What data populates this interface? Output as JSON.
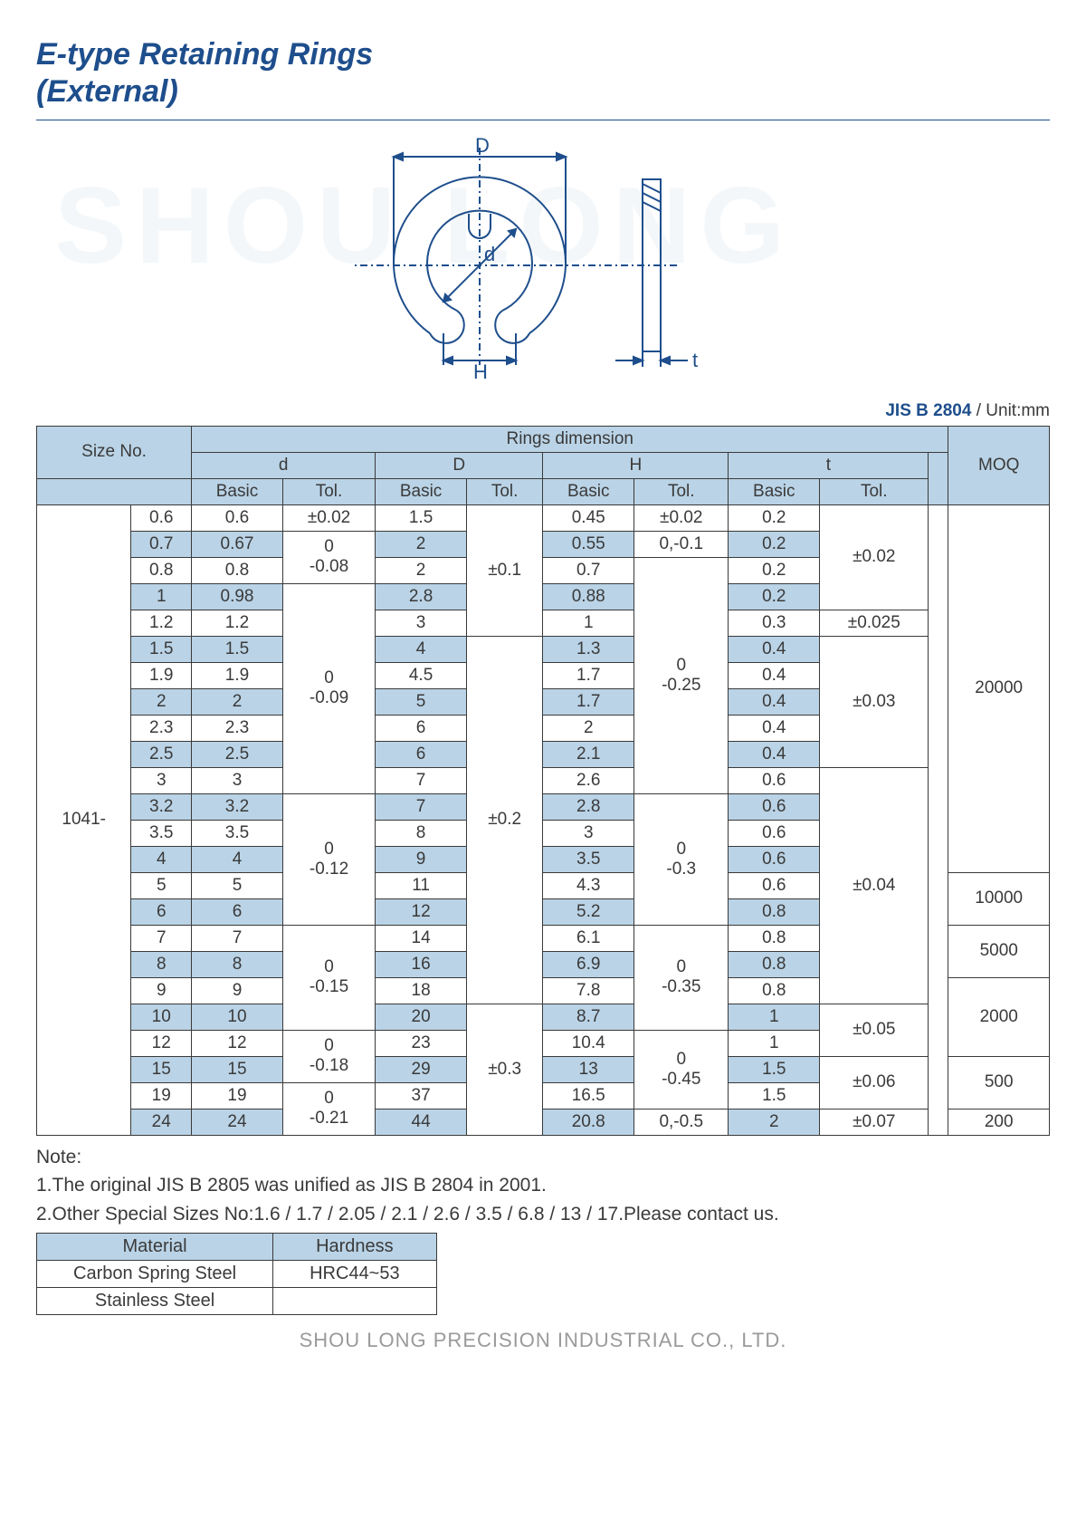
{
  "title_line1": "E-type Retaining Rings",
  "title_line2": "(External)",
  "watermark": "SHOU LONG",
  "standard": "JIS B 2804",
  "unit": "/ Unit:mm",
  "diagram": {
    "labels": {
      "D": "D",
      "d": "d",
      "H": "H",
      "t": "t"
    },
    "stroke": "#1e4e8c",
    "fill": "#ffffff"
  },
  "headers": {
    "size_no": "Size No.",
    "rings_dim": "Rings dimension",
    "moq": "MOQ",
    "d": "d",
    "D": "D",
    "H": "H",
    "t": "t",
    "basic": "Basic",
    "tol": "Tol."
  },
  "prefix": "1041-",
  "rows": [
    {
      "alt": 0,
      "size": "0.6",
      "d": "0.6",
      "dt": "±0.02",
      "D": "1.5",
      "H": "0.45",
      "Ht": "±0.02",
      "t": "0.2"
    },
    {
      "alt": 1,
      "size": "0.7",
      "d": "0.67",
      "D": "2",
      "H": "0.55",
      "Ht": "0,-0.1",
      "t": "0.2"
    },
    {
      "alt": 0,
      "size": "0.8",
      "d": "0.8",
      "D": "2",
      "H": "0.7",
      "t": "0.2"
    },
    {
      "alt": 1,
      "size": "1",
      "d": "0.98",
      "D": "2.8",
      "H": "0.88",
      "t": "0.2"
    },
    {
      "alt": 0,
      "size": "1.2",
      "d": "1.2",
      "D": "3",
      "H": "1",
      "t": "0.3"
    },
    {
      "alt": 1,
      "size": "1.5",
      "d": "1.5",
      "D": "4",
      "H": "1.3",
      "t": "0.4"
    },
    {
      "alt": 0,
      "size": "1.9",
      "d": "1.9",
      "D": "4.5",
      "H": "1.7",
      "t": "0.4"
    },
    {
      "alt": 1,
      "size": "2",
      "d": "2",
      "D": "5",
      "H": "1.7",
      "t": "0.4"
    },
    {
      "alt": 0,
      "size": "2.3",
      "d": "2.3",
      "D": "6",
      "H": "2",
      "t": "0.4"
    },
    {
      "alt": 1,
      "size": "2.5",
      "d": "2.5",
      "D": "6",
      "H": "2.1",
      "t": "0.4"
    },
    {
      "alt": 0,
      "size": "3",
      "d": "3",
      "D": "7",
      "H": "2.6",
      "t": "0.6"
    },
    {
      "alt": 1,
      "size": "3.2",
      "d": "3.2",
      "D": "7",
      "H": "2.8",
      "t": "0.6"
    },
    {
      "alt": 0,
      "size": "3.5",
      "d": "3.5",
      "D": "8",
      "H": "3",
      "t": "0.6"
    },
    {
      "alt": 1,
      "size": "4",
      "d": "4",
      "D": "9",
      "H": "3.5",
      "t": "0.6"
    },
    {
      "alt": 0,
      "size": "5",
      "d": "5",
      "D": "11",
      "H": "4.3",
      "t": "0.6"
    },
    {
      "alt": 1,
      "size": "6",
      "d": "6",
      "D": "12",
      "H": "5.2",
      "t": "0.8"
    },
    {
      "alt": 0,
      "size": "7",
      "d": "7",
      "D": "14",
      "H": "6.1",
      "t": "0.8"
    },
    {
      "alt": 1,
      "size": "8",
      "d": "8",
      "D": "16",
      "H": "6.9",
      "t": "0.8"
    },
    {
      "alt": 0,
      "size": "9",
      "d": "9",
      "D": "18",
      "H": "7.8",
      "t": "0.8"
    },
    {
      "alt": 1,
      "size": "10",
      "d": "10",
      "D": "20",
      "H": "8.7",
      "t": "1"
    },
    {
      "alt": 0,
      "size": "12",
      "d": "12",
      "D": "23",
      "H": "10.4",
      "t": "1"
    },
    {
      "alt": 1,
      "size": "15",
      "d": "15",
      "D": "29",
      "H": "13",
      "t": "1.5"
    },
    {
      "alt": 0,
      "size": "19",
      "d": "19",
      "D": "37",
      "H": "16.5",
      "t": "1.5"
    },
    {
      "alt": 1,
      "size": "24",
      "d": "24",
      "D": "44",
      "H": "20.8",
      "Ht": "0,-0.5",
      "t": "2"
    }
  ],
  "merged": {
    "d_tol": [
      {
        "start": 1,
        "span": 2,
        "text": "0\n-0.08"
      },
      {
        "start": 3,
        "span": 8,
        "text": "0\n-0.09"
      },
      {
        "start": 11,
        "span": 5,
        "text": "0\n-0.12"
      },
      {
        "start": 16,
        "span": 4,
        "text": "0\n-0.15"
      },
      {
        "start": 20,
        "span": 2,
        "text": "0\n-0.18"
      },
      {
        "start": 22,
        "span": 2,
        "text": "0\n-0.21"
      }
    ],
    "D_tol": [
      {
        "start": 0,
        "span": 5,
        "text": "±0.1"
      },
      {
        "start": 5,
        "span": 14,
        "text": "±0.2"
      },
      {
        "start": 19,
        "span": 5,
        "text": "±0.3"
      }
    ],
    "H_tol": [
      {
        "start": 2,
        "span": 9,
        "text": "0\n-0.25"
      },
      {
        "start": 11,
        "span": 5,
        "text": "0\n-0.3"
      },
      {
        "start": 16,
        "span": 4,
        "text": "0\n-0.35"
      },
      {
        "start": 20,
        "span": 3,
        "text": "0\n-0.45"
      }
    ],
    "t_tol": [
      {
        "start": 0,
        "span": 4,
        "text": "±0.02"
      },
      {
        "start": 4,
        "span": 1,
        "text": "±0.025"
      },
      {
        "start": 5,
        "span": 5,
        "text": "±0.03"
      },
      {
        "start": 10,
        "span": 9,
        "text": "±0.04"
      },
      {
        "start": 19,
        "span": 2,
        "text": "±0.05"
      },
      {
        "start": 21,
        "span": 2,
        "text": "±0.06"
      },
      {
        "start": 23,
        "span": 1,
        "text": "±0.07"
      }
    ],
    "moq": [
      {
        "start": 0,
        "span": 14,
        "text": "20000"
      },
      {
        "start": 14,
        "span": 2,
        "text": "10000"
      },
      {
        "start": 16,
        "span": 2,
        "text": "5000"
      },
      {
        "start": 18,
        "span": 3,
        "text": "2000"
      },
      {
        "start": 21,
        "span": 2,
        "text": "500"
      },
      {
        "start": 23,
        "span": 1,
        "text": "200"
      }
    ]
  },
  "notes": {
    "heading": "Note:",
    "n1": "1.The original JIS B 2805 was unified as JIS B 2804 in 2001.",
    "n2": "2.Other Special Sizes No:1.6 / 1.7 / 2.05 / 2.1 / 2.6 / 3.5 / 6.8 / 13 / 17.Please contact us."
  },
  "material_table": {
    "h1": "Material",
    "h2": "Hardness",
    "r1c1": "Carbon Spring Steel",
    "r1c2": "HRC44~53",
    "r2c1": "Stainless Steel",
    "r2c2": ""
  },
  "footer": "SHOU LONG PRECISION INDUSTRIAL CO., LTD."
}
